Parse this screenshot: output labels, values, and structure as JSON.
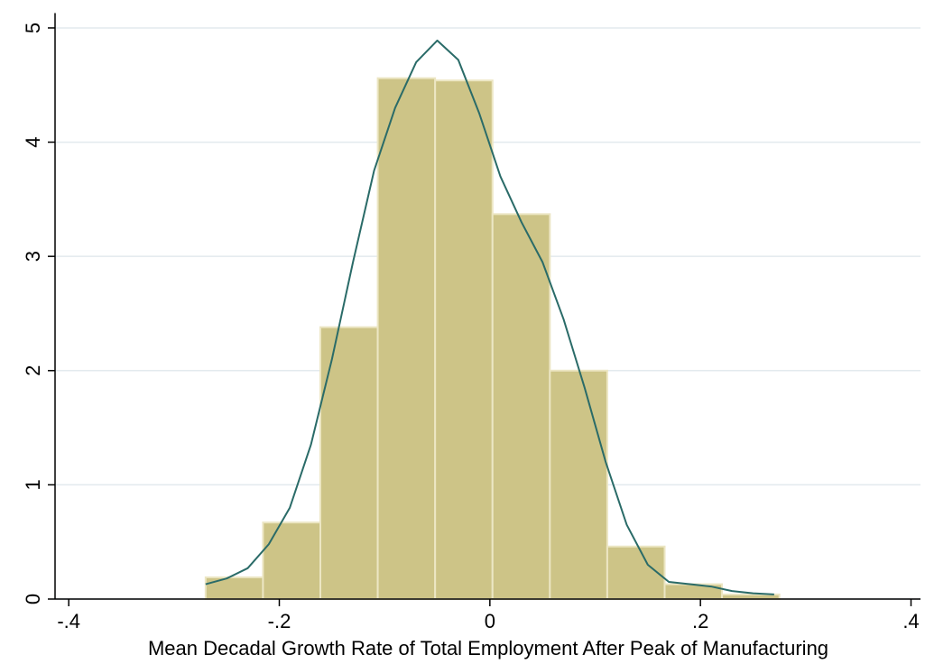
{
  "chart_data": {
    "type": "histogram",
    "x_label": "Mean Decadal Growth Rate of Total Employment After Peak of Manufacturing",
    "bins": [
      -0.27,
      -0.2155,
      -0.161,
      -0.1065,
      -0.052,
      0.0025,
      0.057,
      0.1115,
      0.166,
      0.2205,
      0.275
    ],
    "values": [
      0.19,
      0.67,
      2.38,
      4.56,
      4.54,
      3.37,
      2.0,
      0.46,
      0.13,
      0.04
    ],
    "color": "#cdc487",
    "density_curve": {
      "color": "#2a6b68",
      "x": [
        -0.27,
        -0.25,
        -0.23,
        -0.21,
        -0.19,
        -0.17,
        -0.15,
        -0.13,
        -0.11,
        -0.09,
        -0.07,
        -0.05,
        -0.03,
        -0.01,
        0.01,
        0.03,
        0.05,
        0.07,
        0.09,
        0.11,
        0.13,
        0.15,
        0.17,
        0.19,
        0.21,
        0.23,
        0.25,
        0.27
      ],
      "values": [
        0.13,
        0.18,
        0.27,
        0.48,
        0.8,
        1.35,
        2.1,
        2.95,
        3.75,
        4.3,
        4.7,
        4.89,
        4.72,
        4.25,
        3.7,
        3.3,
        2.95,
        2.45,
        1.85,
        1.2,
        0.65,
        0.3,
        0.15,
        0.13,
        0.11,
        0.07,
        0.05,
        0.04
      ]
    },
    "xlim": [
      -0.413,
      0.409
    ],
    "xticks": [
      {
        "value": -0.4,
        "label": "-.4"
      },
      {
        "value": -0.2,
        "label": "-.2"
      },
      0,
      {
        "value": 0.2,
        "label": ".2"
      },
      {
        "value": 0.4,
        "label": ".4"
      }
    ],
    "ylim": [
      0,
      5.13
    ],
    "yticks": [
      0,
      1,
      2,
      3,
      4,
      5
    ],
    "grid": true
  }
}
